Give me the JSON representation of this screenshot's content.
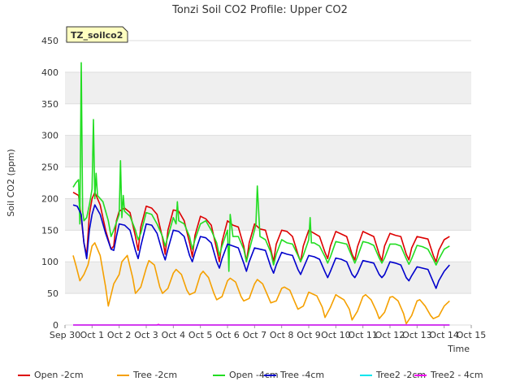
{
  "chart_data": {
    "type": "line",
    "title": "Tonzi Soil CO2 Profile: Upper CO2",
    "xlabel": "Time",
    "ylabel": "Soil CO2 (ppm)",
    "ylim": [
      0,
      450
    ],
    "yticks": [
      0,
      50,
      100,
      150,
      200,
      250,
      300,
      350,
      400,
      450
    ],
    "xlim": [
      0,
      15
    ],
    "xticks": [
      {
        "v": 0,
        "label": "Sep 30"
      },
      {
        "v": 1,
        "label": "Oct 1"
      },
      {
        "v": 2,
        "label": "Oct 2"
      },
      {
        "v": 3,
        "label": "Oct 3"
      },
      {
        "v": 4,
        "label": "Oct 4"
      },
      {
        "v": 5,
        "label": "Oct 5"
      },
      {
        "v": 6,
        "label": "Oct 6"
      },
      {
        "v": 7,
        "label": "Oct 7"
      },
      {
        "v": 8,
        "label": "Oct 8"
      },
      {
        "v": 9,
        "label": "Oct 9"
      },
      {
        "v": 10,
        "label": "Oct 10"
      },
      {
        "v": 11,
        "label": "Oct 11"
      },
      {
        "v": 12,
        "label": "Oct 12"
      },
      {
        "v": 13,
        "label": "Oct 13"
      },
      {
        "v": 14,
        "label": "Oct 14"
      },
      {
        "v": 15,
        "label": "Oct 15"
      }
    ],
    "grid": "horizontal",
    "background_bands": true,
    "badge": "TZ_soilco2",
    "legend_position": "bottom",
    "series": [
      {
        "name": "Open -2cm",
        "color": "#dd0000",
        "x": [
          0.3,
          0.5,
          0.6,
          0.7,
          0.8,
          0.9,
          1.0,
          1.1,
          1.3,
          1.5,
          1.7,
          1.8,
          1.9,
          2.0,
          2.2,
          2.4,
          2.6,
          2.7,
          2.8,
          3.0,
          3.2,
          3.4,
          3.6,
          3.7,
          3.8,
          4.0,
          4.2,
          4.4,
          4.6,
          4.7,
          4.8,
          5.0,
          5.2,
          5.4,
          5.6,
          5.7,
          5.8,
          6.0,
          6.2,
          6.4,
          6.6,
          6.7,
          6.8,
          7.0,
          7.2,
          7.4,
          7.6,
          7.7,
          7.8,
          8.0,
          8.2,
          8.4,
          8.6,
          8.7,
          8.8,
          9.0,
          9.2,
          9.4,
          9.6,
          9.7,
          9.8,
          10.0,
          10.2,
          10.4,
          10.6,
          10.7,
          10.8,
          11.0,
          11.2,
          11.4,
          11.6,
          11.7,
          11.8,
          12.0,
          12.2,
          12.4,
          12.6,
          12.7,
          12.8,
          13.0,
          13.2,
          13.4,
          13.6,
          13.7,
          13.8,
          14.0,
          14.2
        ],
        "y": [
          210,
          205,
          170,
          130,
          110,
          175,
          200,
          210,
          190,
          150,
          120,
          125,
          165,
          180,
          185,
          178,
          140,
          118,
          155,
          188,
          185,
          175,
          138,
          112,
          150,
          182,
          180,
          165,
          130,
          108,
          142,
          172,
          168,
          158,
          120,
          100,
          132,
          165,
          158,
          155,
          125,
          100,
          130,
          160,
          152,
          150,
          120,
          100,
          128,
          150,
          148,
          140,
          112,
          100,
          125,
          150,
          145,
          140,
          115,
          105,
          125,
          148,
          144,
          140,
          112,
          103,
          124,
          148,
          144,
          140,
          112,
          102,
          125,
          145,
          142,
          140,
          112,
          103,
          122,
          140,
          138,
          136,
          110,
          100,
          118,
          135,
          140
        ]
      },
      {
        "name": "Tree -2cm",
        "color": "#f5a000",
        "x": [
          0.3,
          0.4,
          0.55,
          0.7,
          0.85,
          1.0,
          1.1,
          1.3,
          1.5,
          1.6,
          1.8,
          2.0,
          2.1,
          2.3,
          2.5,
          2.6,
          2.8,
          3.0,
          3.1,
          3.3,
          3.5,
          3.6,
          3.8,
          4.0,
          4.1,
          4.3,
          4.5,
          4.6,
          4.8,
          5.0,
          5.1,
          5.3,
          5.5,
          5.6,
          5.8,
          6.0,
          6.1,
          6.3,
          6.5,
          6.6,
          6.8,
          7.0,
          7.1,
          7.3,
          7.5,
          7.6,
          7.8,
          8.0,
          8.1,
          8.3,
          8.5,
          8.6,
          8.8,
          9.0,
          9.1,
          9.3,
          9.5,
          9.6,
          9.8,
          10.0,
          10.1,
          10.3,
          10.5,
          10.6,
          10.8,
          11.0,
          11.1,
          11.3,
          11.5,
          11.6,
          11.8,
          12.0,
          12.1,
          12.3,
          12.5,
          12.6,
          12.8,
          13.0,
          13.1,
          13.3,
          13.5,
          13.6,
          13.8,
          14.0,
          14.2
        ],
        "y": [
          110,
          95,
          70,
          80,
          95,
          125,
          130,
          110,
          60,
          30,
          65,
          80,
          100,
          110,
          75,
          50,
          60,
          90,
          102,
          95,
          60,
          50,
          58,
          82,
          88,
          80,
          55,
          48,
          52,
          80,
          85,
          75,
          50,
          40,
          45,
          70,
          74,
          68,
          45,
          38,
          42,
          65,
          72,
          65,
          45,
          35,
          38,
          58,
          60,
          55,
          35,
          25,
          30,
          52,
          50,
          46,
          28,
          12,
          28,
          48,
          45,
          40,
          25,
          8,
          22,
          45,
          48,
          40,
          22,
          10,
          20,
          44,
          45,
          38,
          18,
          2,
          15,
          38,
          40,
          30,
          15,
          10,
          14,
          30,
          38
        ]
      },
      {
        "name": "Open -4cm",
        "color": "#22dd22",
        "x": [
          0.3,
          0.4,
          0.5,
          0.55,
          0.6,
          0.65,
          0.7,
          0.8,
          0.9,
          1.0,
          1.05,
          1.1,
          1.15,
          1.2,
          1.4,
          1.6,
          1.7,
          1.8,
          2.0,
          2.05,
          2.1,
          2.15,
          2.2,
          2.4,
          2.6,
          2.7,
          2.8,
          3.0,
          3.2,
          3.4,
          3.6,
          3.7,
          3.8,
          4.0,
          4.1,
          4.15,
          4.2,
          4.4,
          4.6,
          4.7,
          4.8,
          5.0,
          5.2,
          5.4,
          5.6,
          5.7,
          5.8,
          6.0,
          6.05,
          6.1,
          6.2,
          6.4,
          6.6,
          6.7,
          6.8,
          7.0,
          7.05,
          7.1,
          7.2,
          7.4,
          7.6,
          7.7,
          7.8,
          8.0,
          8.2,
          8.4,
          8.6,
          8.7,
          8.8,
          9.0,
          9.05,
          9.1,
          9.2,
          9.4,
          9.6,
          9.7,
          9.8,
          10.0,
          10.2,
          10.4,
          10.6,
          10.7,
          10.8,
          11.0,
          11.2,
          11.4,
          11.6,
          11.7,
          11.8,
          12.0,
          12.2,
          12.4,
          12.6,
          12.7,
          12.8,
          13.0,
          13.2,
          13.4,
          13.6,
          13.7,
          13.8,
          14.0,
          14.2
        ],
        "y": [
          218,
          225,
          230,
          160,
          415,
          180,
          165,
          170,
          190,
          215,
          325,
          200,
          240,
          205,
          195,
          165,
          140,
          150,
          175,
          260,
          170,
          205,
          180,
          172,
          150,
          135,
          145,
          178,
          175,
          160,
          140,
          125,
          140,
          170,
          160,
          195,
          165,
          160,
          140,
          120,
          135,
          160,
          165,
          150,
          130,
          110,
          125,
          150,
          85,
          175,
          140,
          140,
          120,
          100,
          118,
          150,
          160,
          220,
          140,
          135,
          115,
          95,
          112,
          135,
          130,
          128,
          110,
          100,
          110,
          135,
          170,
          130,
          130,
          125,
          108,
          98,
          108,
          132,
          130,
          128,
          108,
          98,
          108,
          132,
          130,
          126,
          106,
          98,
          106,
          128,
          128,
          125,
          105,
          96,
          105,
          126,
          124,
          120,
          104,
          95,
          104,
          120,
          125
        ]
      },
      {
        "name": "Tree -4cm",
        "color": "#0000cc",
        "x": [
          0.3,
          0.45,
          0.6,
          0.7,
          0.8,
          0.9,
          1.0,
          1.1,
          1.3,
          1.5,
          1.7,
          1.8,
          1.9,
          2.0,
          2.2,
          2.4,
          2.6,
          2.7,
          2.8,
          3.0,
          3.2,
          3.4,
          3.6,
          3.7,
          3.8,
          4.0,
          4.2,
          4.4,
          4.6,
          4.7,
          4.8,
          5.0,
          5.2,
          5.4,
          5.6,
          5.7,
          5.8,
          6.0,
          6.2,
          6.4,
          6.6,
          6.7,
          6.8,
          7.0,
          7.2,
          7.4,
          7.6,
          7.7,
          7.8,
          8.0,
          8.2,
          8.4,
          8.6,
          8.7,
          8.8,
          9.0,
          9.2,
          9.4,
          9.6,
          9.7,
          9.8,
          10.0,
          10.2,
          10.4,
          10.6,
          10.7,
          10.8,
          11.0,
          11.2,
          11.4,
          11.6,
          11.7,
          11.8,
          12.0,
          12.2,
          12.4,
          12.6,
          12.7,
          12.8,
          13.0,
          13.2,
          13.4,
          13.6,
          13.7,
          13.8,
          14.0,
          14.2
        ],
        "y": [
          190,
          188,
          175,
          130,
          105,
          150,
          175,
          190,
          175,
          145,
          120,
          118,
          140,
          160,
          158,
          150,
          118,
          105,
          125,
          160,
          158,
          145,
          115,
          103,
          120,
          150,
          148,
          140,
          110,
          100,
          115,
          140,
          138,
          130,
          100,
          90,
          105,
          128,
          125,
          122,
          98,
          85,
          100,
          122,
          120,
          118,
          92,
          82,
          95,
          115,
          112,
          110,
          88,
          80,
          90,
          110,
          108,
          104,
          84,
          75,
          85,
          106,
          104,
          100,
          80,
          75,
          82,
          102,
          100,
          98,
          80,
          75,
          80,
          100,
          98,
          95,
          75,
          70,
          78,
          92,
          90,
          88,
          68,
          58,
          70,
          85,
          95
        ]
      },
      {
        "name": "Tree2 -2cm",
        "color": "#00e5ee",
        "x": [
          0.3,
          14.2
        ],
        "y": [
          0,
          0
        ]
      },
      {
        "name": "Tree2 - 4cm",
        "color": "#ee00ee",
        "x": [
          0.3,
          3.4,
          3.45,
          3.5,
          14.2
        ],
        "y": [
          0,
          0,
          1,
          0,
          0
        ]
      }
    ]
  }
}
